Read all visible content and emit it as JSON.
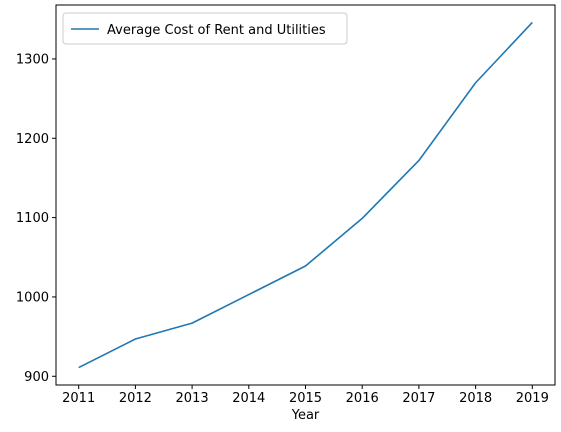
{
  "chart_data": {
    "type": "line",
    "title": "",
    "xlabel": "Year",
    "ylabel": "",
    "x": [
      2011,
      2012,
      2013,
      2014,
      2015,
      2016,
      2017,
      2018,
      2019
    ],
    "series": [
      {
        "name": "Average Cost of Rent and Utilities",
        "color": "#1f77b4",
        "values": [
          911,
          947,
          967,
          1003,
          1039,
          1099,
          1172,
          1270,
          1346
        ]
      }
    ],
    "xticks": [
      "2011",
      "2012",
      "2013",
      "2014",
      "2015",
      "2016",
      "2017",
      "2018",
      "2019"
    ],
    "yticks": [
      "900",
      "1000",
      "1100",
      "1200",
      "1300"
    ],
    "ylim": [
      889,
      1368
    ],
    "xlim": [
      2010.6,
      2019.4
    ],
    "grid": false,
    "legend_position": "top-left"
  }
}
